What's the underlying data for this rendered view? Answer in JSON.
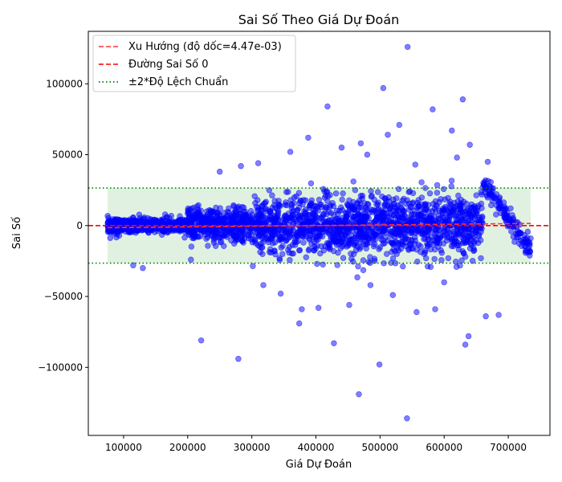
{
  "chart_data": {
    "type": "scatter",
    "title": "Sai Số Theo Giá Dự Đoán",
    "xlabel": "Giá Dự Đoán",
    "ylabel": "Sai Số",
    "xlim": [
      45000,
      765000
    ],
    "ylim": [
      -148000,
      137000
    ],
    "xticks": [
      100000,
      200000,
      300000,
      400000,
      500000,
      600000,
      700000
    ],
    "yticks": [
      -100000,
      -50000,
      0,
      50000,
      100000
    ],
    "xtick_labels": [
      "100000",
      "200000",
      "300000",
      "400000",
      "500000",
      "600000",
      "700000"
    ],
    "ytick_labels": [
      "−100000",
      "−50000",
      "0",
      "50000",
      "100000"
    ],
    "grid": false,
    "legend": {
      "placement": "top-left",
      "entries": [
        {
          "label": "Xu Hướng (độ dốc=4.47e-03)",
          "color": "#ff3333",
          "style": "dashed"
        },
        {
          "label": "Đường Sai Số 0",
          "color": "#ff0000",
          "style": "dashed"
        },
        {
          "label": "±2*Độ Lệch Chuẩn",
          "color": "#008000",
          "style": "dotted"
        }
      ]
    },
    "trend": {
      "slope": 0.00447,
      "x_range": [
        75000,
        735000
      ],
      "y_range": [
        -1500,
        1500
      ]
    },
    "zero_line": 0,
    "std_band": {
      "upper": 26500,
      "lower": -26500,
      "x_range": [
        75000,
        735000
      ]
    },
    "colors": {
      "points": "#0000ff",
      "trend": "#ff3333",
      "zero": "#ff0000",
      "band_line": "#008000",
      "band_fill": "#c8e6c8"
    },
    "outliers": [
      [
        543000,
        126000
      ],
      [
        629000,
        89000
      ],
      [
        418000,
        84000
      ],
      [
        582000,
        82000
      ],
      [
        505000,
        97000
      ],
      [
        612000,
        67000
      ],
      [
        530000,
        71000
      ],
      [
        388000,
        62000
      ],
      [
        283000,
        42000
      ],
      [
        250000,
        38000
      ],
      [
        470000,
        58000
      ],
      [
        512000,
        64000
      ],
      [
        221000,
        -81000
      ],
      [
        279000,
        -94000
      ],
      [
        428000,
        -83000
      ],
      [
        499000,
        -98000
      ],
      [
        467000,
        -119000
      ],
      [
        542000,
        -136000
      ],
      [
        633000,
        -84000
      ],
      [
        638000,
        -78000
      ],
      [
        374000,
        -69000
      ],
      [
        378000,
        -59000
      ],
      [
        557000,
        -61000
      ],
      [
        586000,
        -59000
      ],
      [
        665000,
        -64000
      ],
      [
        685000,
        -63000
      ],
      [
        404000,
        -58000
      ],
      [
        452000,
        -56000
      ],
      [
        115000,
        -28000
      ],
      [
        130000,
        -30000
      ],
      [
        205000,
        -24000
      ],
      [
        318000,
        -42000
      ],
      [
        345000,
        -48000
      ],
      [
        485000,
        -42000
      ],
      [
        520000,
        -49000
      ],
      [
        600000,
        -40000
      ],
      [
        360000,
        52000
      ],
      [
        440000,
        55000
      ],
      [
        480000,
        50000
      ],
      [
        555000,
        43000
      ],
      [
        620000,
        48000
      ],
      [
        640000,
        57000
      ],
      [
        668000,
        45000
      ],
      [
        310000,
        44000
      ]
    ],
    "series": [
      {
        "type": "dense-band",
        "x_range": [
          75000,
          735000
        ],
        "spread_note": "residuals widen toward middle, linear decreasing edge near 660000-735000"
      }
    ]
  }
}
